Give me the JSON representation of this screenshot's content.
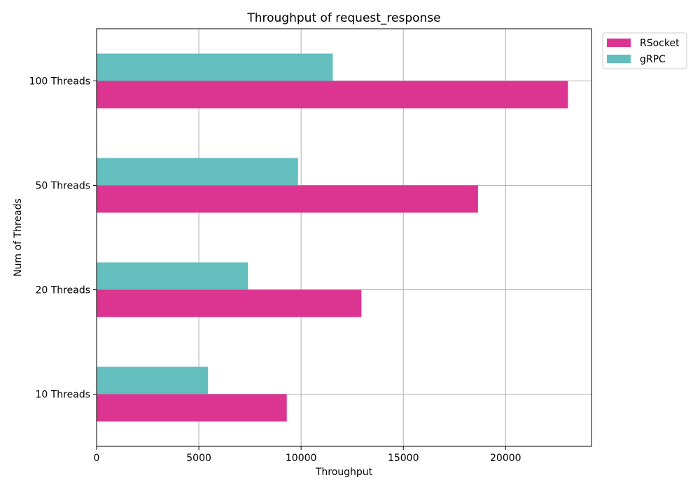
{
  "chart_data": {
    "type": "bar",
    "orientation": "horizontal",
    "title": "Throughput of request_response",
    "xlabel": "Throughput",
    "ylabel": "Num of Threads",
    "categories": [
      "10 Threads",
      "20 Threads",
      "50 Threads",
      "100 Threads"
    ],
    "series": [
      {
        "name": "RSocket",
        "color": "#dc3491",
        "values": [
          9300,
          12950,
          18650,
          23050
        ]
      },
      {
        "name": "gRPC",
        "color": "#63bebd",
        "values": [
          5450,
          7400,
          9850,
          11550
        ]
      }
    ],
    "xlim": [
      0,
      24200
    ],
    "xticks": [
      0,
      5000,
      10000,
      15000,
      20000
    ],
    "xtick_labels": [
      "0",
      "5000",
      "10000",
      "15000",
      "20000"
    ],
    "grid": true,
    "legend_position": "upper-right-outside"
  }
}
